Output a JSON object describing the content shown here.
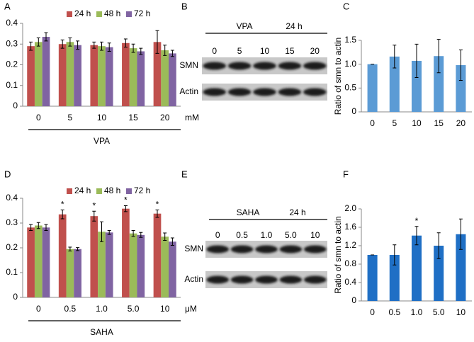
{
  "chart_data": [
    {
      "type": "bar",
      "panel_label": "A",
      "categories": [
        "0",
        "5",
        "10",
        "15",
        "20"
      ],
      "x_unit": "mM",
      "xlabel": "VPA",
      "ylim": [
        0,
        0.4
      ],
      "yticks": [
        0,
        0.1,
        0.2,
        0.3,
        0.4
      ],
      "series": [
        {
          "name": "24 h",
          "color": "#c0504d",
          "values": [
            0.29,
            0.3,
            0.295,
            0.305,
            0.31
          ],
          "errors": [
            0.02,
            0.02,
            0.015,
            0.02,
            0.055
          ]
        },
        {
          "name": "48 h",
          "color": "#9bbb59",
          "values": [
            0.31,
            0.31,
            0.29,
            0.28,
            0.27
          ],
          "errors": [
            0.02,
            0.02,
            0.02,
            0.02,
            0.025
          ]
        },
        {
          "name": "72 h",
          "color": "#8064a2",
          "values": [
            0.335,
            0.295,
            0.285,
            0.265,
            0.255
          ],
          "errors": [
            0.02,
            0.02,
            0.02,
            0.015,
            0.015
          ]
        }
      ]
    },
    {
      "type": "bar",
      "panel_label": "C",
      "ylabel": "Ratio of smn to actin",
      "categories": [
        "0",
        "5",
        "10",
        "15",
        "20"
      ],
      "ylim": [
        0,
        1.5
      ],
      "yticks": [
        0,
        0.5,
        {
          "value": 1,
          "label": "1.0"
        },
        1.5
      ],
      "series": [
        {
          "color": "#5b9bd5",
          "values": [
            1.0,
            1.16,
            1.07,
            1.17,
            0.98
          ],
          "errors": [
            0,
            0.24,
            0.35,
            0.35,
            0.32
          ]
        }
      ]
    },
    {
      "type": "bar",
      "panel_label": "D",
      "categories": [
        "0",
        "0.5",
        "1.0",
        "5.0",
        "10"
      ],
      "x_unit": "μM",
      "xlabel": "SAHA",
      "ylim": [
        0,
        0.4
      ],
      "yticks": [
        0,
        0.1,
        0.2,
        0.3,
        0.4
      ],
      "series": [
        {
          "name": "24 h",
          "color": "#c0504d",
          "values": [
            0.282,
            0.335,
            0.328,
            0.358,
            0.338
          ],
          "errors": [
            0.012,
            0.018,
            0.02,
            0.012,
            0.015
          ],
          "significance": [
            null,
            "*",
            "*",
            "*",
            "*"
          ]
        },
        {
          "name": "48 h",
          "color": "#9bbb59",
          "values": [
            0.29,
            0.195,
            0.265,
            0.258,
            0.245
          ],
          "errors": [
            0.012,
            0.008,
            0.04,
            0.012,
            0.015
          ]
        },
        {
          "name": "72 h",
          "color": "#8064a2",
          "values": [
            0.282,
            0.195,
            0.262,
            0.252,
            0.225
          ],
          "errors": [
            0.012,
            0.006,
            0.008,
            0.01,
            0.015
          ]
        }
      ]
    },
    {
      "type": "bar",
      "panel_label": "F",
      "ylabel": "Ratio of smn to actin",
      "categories": [
        "0",
        "0.5",
        "1.0",
        "5.0",
        "10"
      ],
      "ylim": [
        0,
        2.0
      ],
      "yticks": [
        0,
        0.4,
        0.8,
        1.2,
        1.6,
        {
          "value": 2,
          "label": "2.0"
        }
      ],
      "series": [
        {
          "color": "#1f6fc5",
          "values": [
            1.0,
            1.0,
            1.42,
            1.2,
            1.45
          ],
          "errors": [
            0,
            0.22,
            0.2,
            0.28,
            0.33
          ],
          "significance": [
            null,
            null,
            "*",
            null,
            null
          ]
        }
      ]
    }
  ],
  "blots": [
    {
      "panel_label": "B",
      "treatment": "VPA",
      "time": "24 h",
      "lanes": [
        "0",
        "5",
        "10",
        "15",
        "20"
      ],
      "rows": [
        "SMN",
        "Actin"
      ]
    },
    {
      "panel_label": "E",
      "treatment": "SAHA",
      "time": "24 h",
      "lanes": [
        "0",
        "0.5",
        "1.0",
        "5.0",
        "10"
      ],
      "rows": [
        "SMN",
        "Actin"
      ]
    }
  ]
}
